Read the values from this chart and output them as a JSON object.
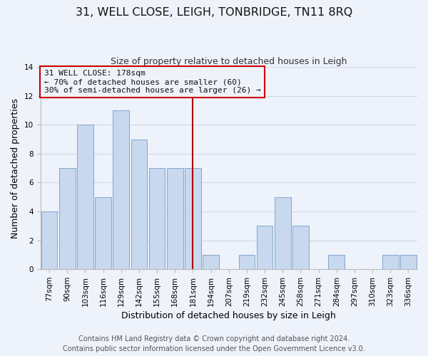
{
  "title": "31, WELL CLOSE, LEIGH, TONBRIDGE, TN11 8RQ",
  "subtitle": "Size of property relative to detached houses in Leigh",
  "xlabel": "Distribution of detached houses by size in Leigh",
  "ylabel": "Number of detached properties",
  "categories": [
    "77sqm",
    "90sqm",
    "103sqm",
    "116sqm",
    "129sqm",
    "142sqm",
    "155sqm",
    "168sqm",
    "181sqm",
    "194sqm",
    "207sqm",
    "219sqm",
    "232sqm",
    "245sqm",
    "258sqm",
    "271sqm",
    "284sqm",
    "297sqm",
    "310sqm",
    "323sqm",
    "336sqm"
  ],
  "values": [
    4,
    7,
    10,
    5,
    11,
    9,
    7,
    7,
    7,
    1,
    0,
    1,
    3,
    5,
    3,
    0,
    1,
    0,
    0,
    1,
    1
  ],
  "bar_color": "#c8d8ee",
  "bar_edge_color": "#7fa8d0",
  "highlight_index": 8,
  "highlight_line_color": "#aa0000",
  "annotation_box_edge_color": "#cc0000",
  "annotation_lines": [
    "31 WELL CLOSE: 178sqm",
    "← 70% of detached houses are smaller (60)",
    "30% of semi-detached houses are larger (26) →"
  ],
  "ylim": [
    0,
    14
  ],
  "yticks": [
    0,
    2,
    4,
    6,
    8,
    10,
    12,
    14
  ],
  "footer_lines": [
    "Contains HM Land Registry data © Crown copyright and database right 2024.",
    "Contains public sector information licensed under the Open Government Licence v3.0."
  ],
  "background_color": "#eef2fa",
  "grid_color": "#d0d8e8",
  "title_fontsize": 11.5,
  "subtitle_fontsize": 9,
  "axis_label_fontsize": 9,
  "tick_fontsize": 7.5,
  "footer_fontsize": 7,
  "ann_fontsize": 8
}
